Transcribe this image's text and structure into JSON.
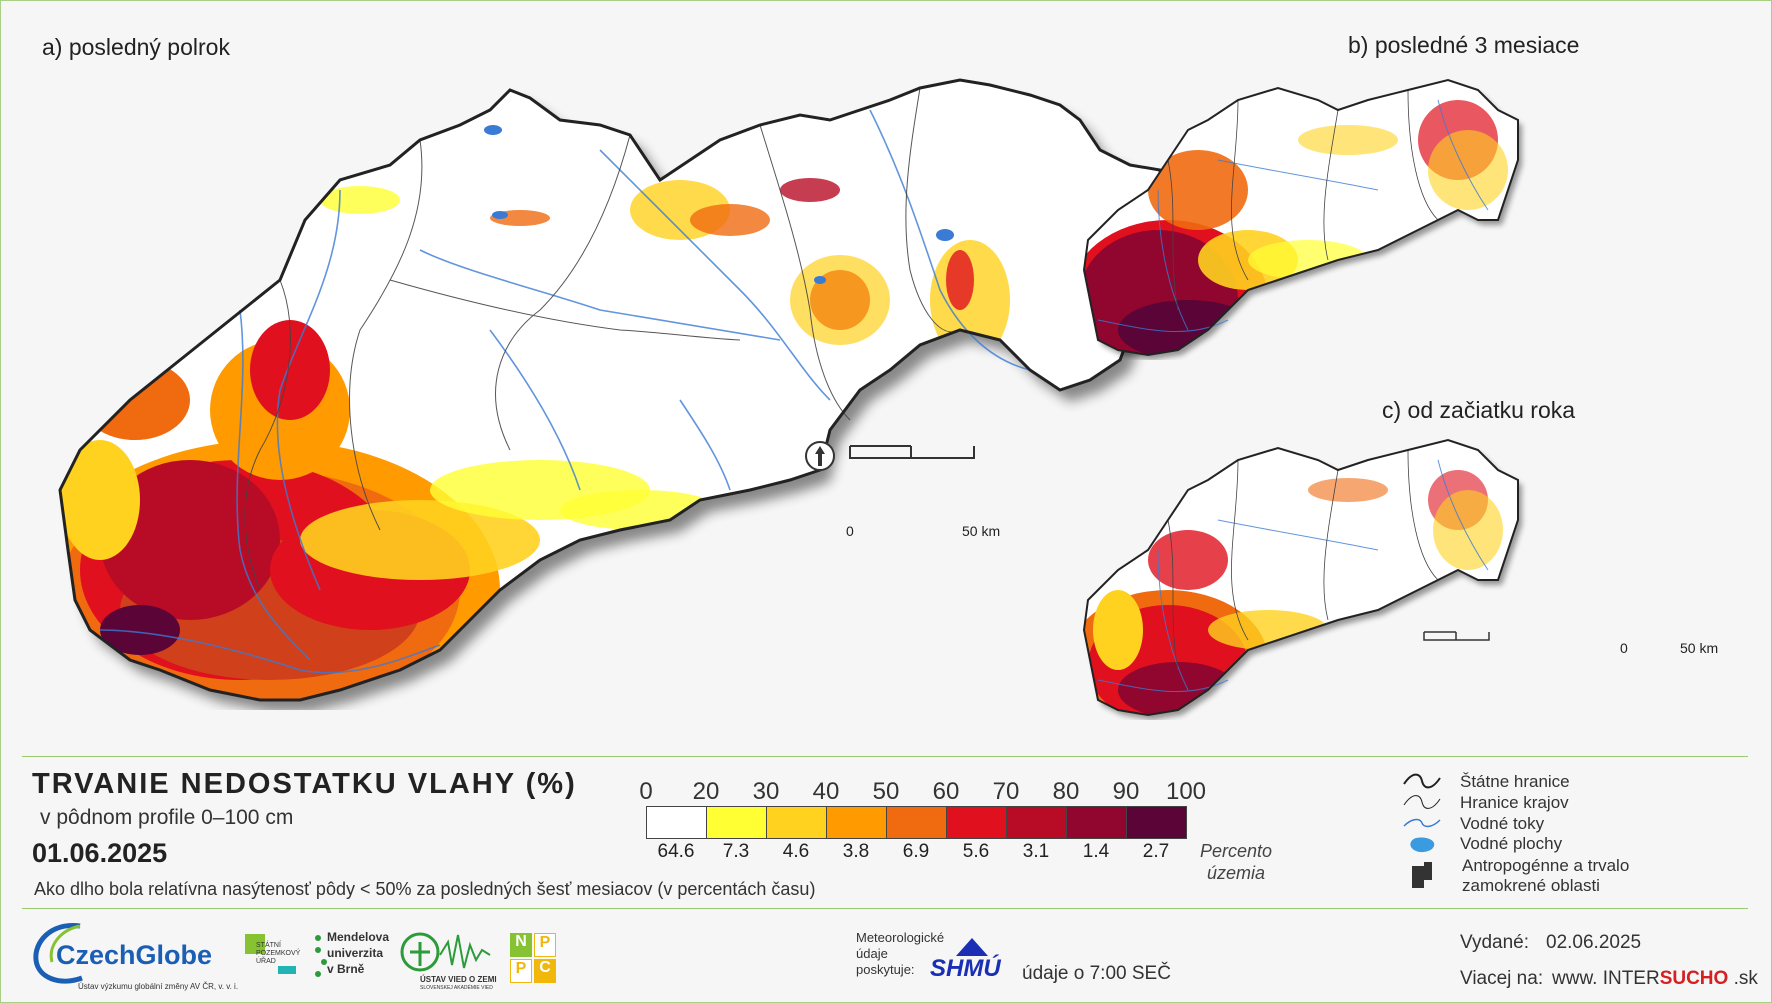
{
  "panels": {
    "a": "a) posledný polrok",
    "b": "b) posledné 3 mesiace",
    "c": "c) od začiatku roka"
  },
  "scalebar_main": {
    "zero": "0",
    "fifty": "50 km"
  },
  "scalebar_small": {
    "zero": "0",
    "fifty": "50 km"
  },
  "legend_box": {
    "title": "TRVANIE NEDOSTATKU VLAHY (%)",
    "subtitle": "v pôdnom profile 0–100 cm",
    "date": "01.06.2025",
    "description": "Ako dlho bola relatívna nasýtenosť pôdy < 50% za posledných šesť mesiacov (v percentách času)",
    "ticks": [
      "0",
      "20",
      "30",
      "40",
      "50",
      "60",
      "70",
      "80",
      "90",
      "100"
    ],
    "colors": [
      "#ffffff",
      "#ffff33",
      "#ffd21f",
      "#ff9a00",
      "#f06a10",
      "#e0101e",
      "#b80b26",
      "#90062e",
      "#5a0437"
    ],
    "percentages": [
      "64.6",
      "7.3",
      "4.6",
      "3.8",
      "6.9",
      "5.6",
      "3.1",
      "1.4",
      "2.7"
    ],
    "percent_title_1": "Percento",
    "percent_title_2": "územia"
  },
  "map_legend": {
    "state_borders": "Štátne hranice",
    "regional_borders": "Hranice krajov",
    "rivers": "Vodné toky",
    "water_bodies": "Vodné plochy",
    "wetlands_1": "Antropogénne a trvalo",
    "wetlands_2": "zamokrené oblasti"
  },
  "footer": {
    "czechglobe": "CzechGlobe",
    "czechglobe_sub": "Ústav výzkumu globální změny AV ČR, v. v. i.",
    "spu_1": "STÁTNÍ",
    "spu_2": "POZEMKOVÝ",
    "spu_3": "ÚŘAD",
    "mendel_1": "Mendelova",
    "mendel_2": "univerzita",
    "mendel_3": "v Brně",
    "uvz_1": "ÚSTAV VIED O ZEMI",
    "uvz_2": "SLOVENSKEJ AKADÉMIE VIED",
    "nppc": [
      "N",
      "P",
      "P",
      "C"
    ],
    "met_1": "Meteorologické",
    "met_2": "údaje",
    "met_3": "poskytuje:",
    "shmu": "SHMÚ",
    "data_time": "údaje o 7:00 SEČ",
    "issued_label": "Vydané:",
    "issued_date": "02.06.2025",
    "more_label": "Viacej na:",
    "url_a": "www. ",
    "url_b": "INTER",
    "url_c": "SUCHO",
    "url_d": " .sk"
  }
}
